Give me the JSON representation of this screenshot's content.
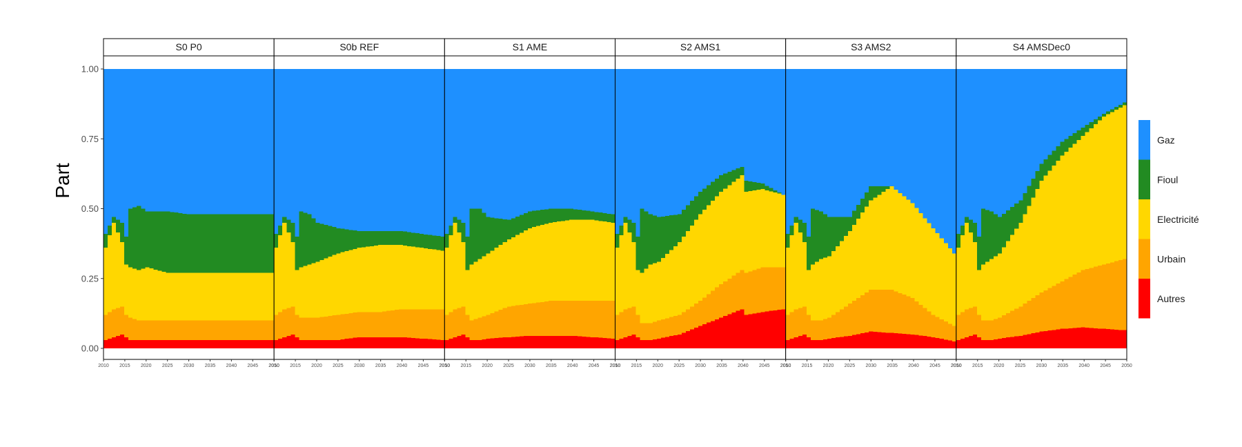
{
  "chart_data": {
    "type": "area",
    "stacked": true,
    "normalized": true,
    "title": "",
    "xlabel": "",
    "ylabel": "Part",
    "ylim": [
      0,
      1
    ],
    "y_ticks": [
      "0.00",
      "0.25",
      "0.50",
      "0.75",
      "1.00"
    ],
    "x_ticks": [
      "2010",
      "2015",
      "2020",
      "2025",
      "2030",
      "2035",
      "2040",
      "2045",
      "2050"
    ],
    "x_range": [
      2010,
      2050
    ],
    "legend_position": "right",
    "categories": [
      "Gaz",
      "Fioul",
      "Electricité",
      "Urbain",
      "Autres"
    ],
    "colors": {
      "Gaz": "#1E90FF",
      "Fioul": "#228B22",
      "Electricité": "#FFD700",
      "Urbain": "#FFA500",
      "Autres": "#FF0000"
    },
    "panels": [
      {
        "name": "S0 P0",
        "years": [
          2010,
          2012,
          2014,
          2015,
          2016,
          2018,
          2020,
          2025,
          2030,
          2035,
          2040,
          2045,
          2050
        ],
        "cum_autres": [
          0.03,
          0.04,
          0.05,
          0.04,
          0.03,
          0.03,
          0.03,
          0.03,
          0.03,
          0.03,
          0.03,
          0.03,
          0.03
        ],
        "cum_urbain": [
          0.12,
          0.14,
          0.15,
          0.12,
          0.11,
          0.1,
          0.1,
          0.1,
          0.1,
          0.1,
          0.1,
          0.1,
          0.1
        ],
        "cum_electricite": [
          0.36,
          0.45,
          0.38,
          0.3,
          0.29,
          0.28,
          0.29,
          0.27,
          0.27,
          0.27,
          0.27,
          0.27,
          0.27
        ],
        "cum_fioul": [
          0.41,
          0.47,
          0.45,
          0.4,
          0.5,
          0.51,
          0.49,
          0.49,
          0.48,
          0.48,
          0.48,
          0.48,
          0.48
        ]
      },
      {
        "name": "S0b REF",
        "years": [
          2010,
          2012,
          2014,
          2015,
          2016,
          2018,
          2020,
          2025,
          2030,
          2035,
          2040,
          2045,
          2050
        ],
        "cum_autres": [
          0.03,
          0.04,
          0.05,
          0.04,
          0.03,
          0.03,
          0.03,
          0.03,
          0.04,
          0.04,
          0.04,
          0.035,
          0.03
        ],
        "cum_urbain": [
          0.12,
          0.14,
          0.15,
          0.12,
          0.11,
          0.11,
          0.11,
          0.12,
          0.13,
          0.13,
          0.14,
          0.14,
          0.14
        ],
        "cum_electricite": [
          0.36,
          0.45,
          0.38,
          0.28,
          0.29,
          0.3,
          0.31,
          0.34,
          0.36,
          0.37,
          0.37,
          0.36,
          0.35
        ],
        "cum_fioul": [
          0.41,
          0.47,
          0.45,
          0.4,
          0.49,
          0.48,
          0.45,
          0.43,
          0.42,
          0.42,
          0.42,
          0.41,
          0.4
        ]
      },
      {
        "name": "S1 AME",
        "years": [
          2010,
          2012,
          2014,
          2015,
          2016,
          2018,
          2020,
          2025,
          2030,
          2035,
          2040,
          2045,
          2050
        ],
        "cum_autres": [
          0.03,
          0.04,
          0.05,
          0.04,
          0.03,
          0.03,
          0.035,
          0.04,
          0.045,
          0.045,
          0.045,
          0.04,
          0.035
        ],
        "cum_urbain": [
          0.12,
          0.14,
          0.15,
          0.12,
          0.1,
          0.11,
          0.12,
          0.15,
          0.16,
          0.17,
          0.17,
          0.17,
          0.17
        ],
        "cum_electricite": [
          0.36,
          0.45,
          0.38,
          0.28,
          0.3,
          0.32,
          0.34,
          0.39,
          0.43,
          0.45,
          0.46,
          0.46,
          0.45
        ],
        "cum_fioul": [
          0.41,
          0.47,
          0.45,
          0.4,
          0.5,
          0.5,
          0.47,
          0.46,
          0.49,
          0.5,
          0.5,
          0.49,
          0.48
        ]
      },
      {
        "name": "S2 AMS1",
        "years": [
          2010,
          2012,
          2014,
          2015,
          2016,
          2018,
          2020,
          2025,
          2030,
          2035,
          2040,
          2041,
          2045,
          2050
        ],
        "cum_autres": [
          0.03,
          0.04,
          0.05,
          0.04,
          0.03,
          0.03,
          0.035,
          0.05,
          0.08,
          0.11,
          0.14,
          0.12,
          0.13,
          0.14
        ],
        "cum_urbain": [
          0.12,
          0.14,
          0.15,
          0.12,
          0.09,
          0.09,
          0.1,
          0.12,
          0.17,
          0.23,
          0.28,
          0.27,
          0.29,
          0.29
        ],
        "cum_electricite": [
          0.36,
          0.45,
          0.38,
          0.28,
          0.27,
          0.3,
          0.31,
          0.38,
          0.48,
          0.56,
          0.62,
          0.56,
          0.57,
          0.55
        ],
        "cum_fioul": [
          0.41,
          0.47,
          0.45,
          0.4,
          0.5,
          0.48,
          0.47,
          0.48,
          0.56,
          0.62,
          0.65,
          0.6,
          0.59,
          0.55
        ]
      },
      {
        "name": "S3 AMS2",
        "years": [
          2010,
          2012,
          2014,
          2015,
          2016,
          2018,
          2020,
          2025,
          2030,
          2035,
          2040,
          2045,
          2050
        ],
        "cum_autres": [
          0.03,
          0.04,
          0.05,
          0.04,
          0.03,
          0.03,
          0.035,
          0.045,
          0.06,
          0.055,
          0.05,
          0.04,
          0.025
        ],
        "cum_urbain": [
          0.12,
          0.14,
          0.15,
          0.12,
          0.1,
          0.1,
          0.11,
          0.16,
          0.21,
          0.21,
          0.18,
          0.12,
          0.08
        ],
        "cum_electricite": [
          0.36,
          0.45,
          0.38,
          0.28,
          0.3,
          0.32,
          0.33,
          0.42,
          0.53,
          0.58,
          0.52,
          0.43,
          0.34
        ],
        "cum_fioul": [
          0.41,
          0.47,
          0.45,
          0.4,
          0.5,
          0.49,
          0.47,
          0.47,
          0.58,
          0.58,
          0.52,
          0.43,
          0.34
        ]
      },
      {
        "name": "S4 AMSDec0",
        "years": [
          2010,
          2012,
          2014,
          2015,
          2016,
          2018,
          2020,
          2025,
          2030,
          2035,
          2040,
          2045,
          2050
        ],
        "cum_autres": [
          0.03,
          0.04,
          0.05,
          0.04,
          0.03,
          0.03,
          0.035,
          0.045,
          0.06,
          0.07,
          0.075,
          0.07,
          0.065
        ],
        "cum_urbain": [
          0.12,
          0.14,
          0.15,
          0.12,
          0.1,
          0.1,
          0.11,
          0.15,
          0.2,
          0.24,
          0.28,
          0.3,
          0.32
        ],
        "cum_electricite": [
          0.36,
          0.45,
          0.38,
          0.28,
          0.3,
          0.32,
          0.34,
          0.45,
          0.6,
          0.69,
          0.76,
          0.83,
          0.87
        ],
        "cum_fioul": [
          0.41,
          0.47,
          0.45,
          0.4,
          0.5,
          0.49,
          0.47,
          0.53,
          0.66,
          0.74,
          0.79,
          0.84,
          0.88
        ]
      }
    ]
  }
}
